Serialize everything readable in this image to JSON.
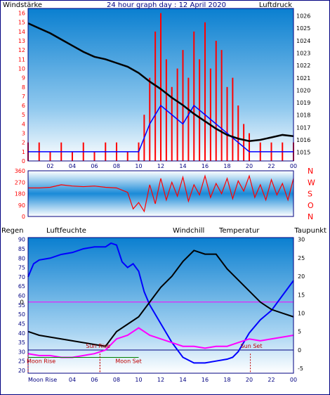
{
  "colors": {
    "wind": "#ff0000",
    "gust": "#0000ff",
    "pressure": "#000000",
    "humidity": "#0000ff",
    "windchill": "#008000",
    "temperature": "#000000",
    "dewpoint": "#ff00ff",
    "rain": "#ff0000",
    "tick_left": "#ff0000",
    "tick_right_top": "#000000",
    "tick_hum": "#000080",
    "zero_line": "#ff00ff",
    "axis_line": "#000080",
    "sun_moon": "#c00000"
  },
  "chart_data": [
    {
      "type": "bar",
      "title": "24 hour graph day : 12 April 2020",
      "label_left": "Windstärke",
      "label_right": "Luftdruck",
      "x_ticks": [
        "02",
        "04",
        "06",
        "08",
        "10",
        "12",
        "14",
        "16",
        "18",
        "20",
        "22",
        "00"
      ],
      "x_range": [
        0,
        24
      ],
      "y_left_ticks": [
        "0",
        "1",
        "2",
        "3",
        "4",
        "5",
        "6",
        "7",
        "8",
        "9",
        "10",
        "11",
        "12",
        "13",
        "14",
        "15",
        "16"
      ],
      "y_left_range": [
        0,
        16.5
      ],
      "y_right_ticks": [
        "1015",
        "1016",
        "1017",
        "1018",
        "1019",
        "1020",
        "1021",
        "1022",
        "1023",
        "1024",
        "1025",
        "1026"
      ],
      "y_right_range": [
        1014.3,
        1026.6
      ],
      "wind_max": [
        [
          0,
          2
        ],
        [
          1,
          2
        ],
        [
          2,
          1
        ],
        [
          3,
          2
        ],
        [
          4,
          1
        ],
        [
          5,
          2
        ],
        [
          6,
          1
        ],
        [
          7,
          2
        ],
        [
          8,
          2
        ],
        [
          9,
          1
        ],
        [
          10,
          2
        ],
        [
          10.5,
          5
        ],
        [
          11,
          9
        ],
        [
          11.5,
          14
        ],
        [
          12,
          16
        ],
        [
          12.5,
          11
        ],
        [
          13,
          8
        ],
        [
          13.5,
          10
        ],
        [
          14,
          12
        ],
        [
          14.5,
          9
        ],
        [
          15,
          14
        ],
        [
          15.5,
          11
        ],
        [
          16,
          15
        ],
        [
          16.5,
          10
        ],
        [
          17,
          13
        ],
        [
          17.5,
          12
        ],
        [
          18,
          8
        ],
        [
          18.5,
          9
        ],
        [
          19,
          6
        ],
        [
          19.5,
          4
        ],
        [
          20,
          3
        ],
        [
          21,
          2
        ],
        [
          22,
          2
        ],
        [
          23,
          2
        ],
        [
          24,
          2
        ]
      ],
      "gust": [
        [
          0,
          1
        ],
        [
          2,
          1
        ],
        [
          4,
          1
        ],
        [
          6,
          1
        ],
        [
          8,
          1
        ],
        [
          10,
          1
        ],
        [
          11,
          4
        ],
        [
          12,
          6
        ],
        [
          13,
          5
        ],
        [
          14,
          4
        ],
        [
          15,
          6
        ],
        [
          16,
          5
        ],
        [
          17,
          4
        ],
        [
          18,
          3
        ],
        [
          19,
          2
        ],
        [
          20,
          1
        ],
        [
          22,
          1
        ],
        [
          24,
          1
        ]
      ],
      "pressure": [
        [
          0,
          1025.4
        ],
        [
          1,
          1025.0
        ],
        [
          2,
          1024.6
        ],
        [
          3,
          1024.1
        ],
        [
          4,
          1023.6
        ],
        [
          5,
          1023.1
        ],
        [
          6,
          1022.7
        ],
        [
          7,
          1022.5
        ],
        [
          8,
          1022.2
        ],
        [
          9,
          1021.9
        ],
        [
          10,
          1021.4
        ],
        [
          11,
          1020.7
        ],
        [
          12,
          1020.1
        ],
        [
          13,
          1019.4
        ],
        [
          14,
          1018.8
        ],
        [
          15,
          1018.1
        ],
        [
          16,
          1017.5
        ],
        [
          17,
          1016.9
        ],
        [
          18,
          1016.4
        ],
        [
          19,
          1016.1
        ],
        [
          20,
          1015.9
        ],
        [
          21,
          1016.0
        ],
        [
          22,
          1016.2
        ],
        [
          23,
          1016.4
        ],
        [
          24,
          1016.3
        ]
      ]
    },
    {
      "type": "line",
      "label_right": "NWSON",
      "y_ticks": [
        "0",
        "90",
        "180",
        "270",
        "360"
      ],
      "y_range": [
        0,
        360
      ],
      "x_range": [
        0,
        24
      ],
      "direction": [
        [
          0,
          225
        ],
        [
          1,
          225
        ],
        [
          2,
          230
        ],
        [
          3,
          250
        ],
        [
          4,
          240
        ],
        [
          5,
          235
        ],
        [
          6,
          240
        ],
        [
          7,
          230
        ],
        [
          8,
          225
        ],
        [
          9,
          190
        ],
        [
          9.5,
          60
        ],
        [
          10,
          110
        ],
        [
          10.5,
          40
        ],
        [
          11,
          250
        ],
        [
          11.5,
          100
        ],
        [
          12,
          300
        ],
        [
          12.5,
          130
        ],
        [
          13,
          270
        ],
        [
          13.5,
          160
        ],
        [
          14,
          310
        ],
        [
          14.5,
          120
        ],
        [
          15,
          250
        ],
        [
          15.5,
          170
        ],
        [
          16,
          320
        ],
        [
          16.5,
          150
        ],
        [
          17,
          260
        ],
        [
          17.5,
          180
        ],
        [
          18,
          300
        ],
        [
          18.5,
          140
        ],
        [
          19,
          280
        ],
        [
          19.5,
          200
        ],
        [
          20,
          320
        ],
        [
          20.5,
          150
        ],
        [
          21,
          250
        ],
        [
          21.5,
          130
        ],
        [
          22,
          290
        ],
        [
          22.5,
          170
        ],
        [
          23,
          260
        ],
        [
          23.5,
          130
        ],
        [
          24,
          300
        ]
      ]
    },
    {
      "type": "line",
      "labels": {
        "rain": "Regen",
        "humidity": "Luftfeuchte",
        "windchill": "Windchill",
        "temperature": "Temperatur",
        "dewpoint": "Taupunkt"
      },
      "x_ticks": [
        "02",
        "04",
        "06",
        "08",
        "10",
        "12",
        "14",
        "16",
        "18",
        "20",
        "22",
        "00"
      ],
      "x_first_label": "Moon Rise",
      "x_range": [
        0,
        24
      ],
      "y_hum_ticks": [
        "20",
        "25",
        "30",
        "35",
        "40",
        "45",
        "50",
        "55",
        "60",
        "65",
        "70",
        "75",
        "80",
        "85",
        "90"
      ],
      "y_hum_range": [
        18.5,
        91
      ],
      "y_temp_ticks": [
        "-5",
        "0",
        "5",
        "10",
        "15",
        "20",
        "25",
        "30"
      ],
      "y_temp_range": [
        -6.3,
        30.5
      ],
      "rain_zero_label": "0",
      "rain_zero_value": 13,
      "events": [
        {
          "label": "Moon Rise",
          "x": 0
        },
        {
          "label": "Sun Rise",
          "x": 6.5
        },
        {
          "label": "Moon Set",
          "x": 6.5
        },
        {
          "label": "Sun Set",
          "x": 20.1
        }
      ],
      "humidity": [
        [
          0,
          70
        ],
        [
          0.5,
          77
        ],
        [
          1,
          79
        ],
        [
          2,
          80
        ],
        [
          3,
          82
        ],
        [
          4,
          83
        ],
        [
          5,
          85
        ],
        [
          6,
          86
        ],
        [
          7,
          86
        ],
        [
          7.5,
          88
        ],
        [
          8,
          87
        ],
        [
          8.5,
          78
        ],
        [
          9,
          75
        ],
        [
          9.5,
          77
        ],
        [
          10,
          73
        ],
        [
          10.5,
          62
        ],
        [
          11,
          55
        ],
        [
          12,
          45
        ],
        [
          13,
          35
        ],
        [
          14,
          27
        ],
        [
          15,
          24
        ],
        [
          16,
          24
        ],
        [
          17,
          25
        ],
        [
          18,
          26
        ],
        [
          18.5,
          27
        ],
        [
          19,
          30
        ],
        [
          19.5,
          35
        ],
        [
          20,
          40
        ],
        [
          21,
          47
        ],
        [
          22,
          52
        ],
        [
          23,
          60
        ],
        [
          24,
          68
        ]
      ],
      "temperature": [
        [
          0,
          5
        ],
        [
          1,
          4
        ],
        [
          2,
          3.5
        ],
        [
          3,
          3
        ],
        [
          4,
          2.5
        ],
        [
          5,
          2
        ],
        [
          6,
          1.5
        ],
        [
          7,
          1
        ],
        [
          8,
          5
        ],
        [
          9,
          7
        ],
        [
          10,
          9
        ],
        [
          11,
          13
        ],
        [
          12,
          17
        ],
        [
          13,
          20
        ],
        [
          14,
          24
        ],
        [
          15,
          27
        ],
        [
          16,
          26
        ],
        [
          17,
          26
        ],
        [
          18,
          22
        ],
        [
          19,
          19
        ],
        [
          20,
          16
        ],
        [
          21,
          13
        ],
        [
          22,
          11
        ],
        [
          23,
          10
        ],
        [
          24,
          9
        ]
      ],
      "dewpoint": [
        [
          0,
          -1
        ],
        [
          1,
          -1.5
        ],
        [
          2,
          -1.5
        ],
        [
          3,
          -2
        ],
        [
          4,
          -2
        ],
        [
          5,
          -1.5
        ],
        [
          6,
          -1
        ],
        [
          7,
          0
        ],
        [
          8,
          3
        ],
        [
          9,
          4
        ],
        [
          10,
          6
        ],
        [
          11,
          4
        ],
        [
          12,
          3
        ],
        [
          13,
          2
        ],
        [
          14,
          1
        ],
        [
          15,
          1
        ],
        [
          16,
          0.5
        ],
        [
          17,
          1
        ],
        [
          18,
          1
        ],
        [
          19,
          2
        ],
        [
          20,
          3
        ],
        [
          21,
          2.5
        ],
        [
          22,
          3
        ],
        [
          23,
          3.5
        ],
        [
          24,
          4
        ]
      ],
      "windchill": [
        [
          0,
          -2
        ],
        [
          10,
          -2
        ]
      ]
    }
  ]
}
